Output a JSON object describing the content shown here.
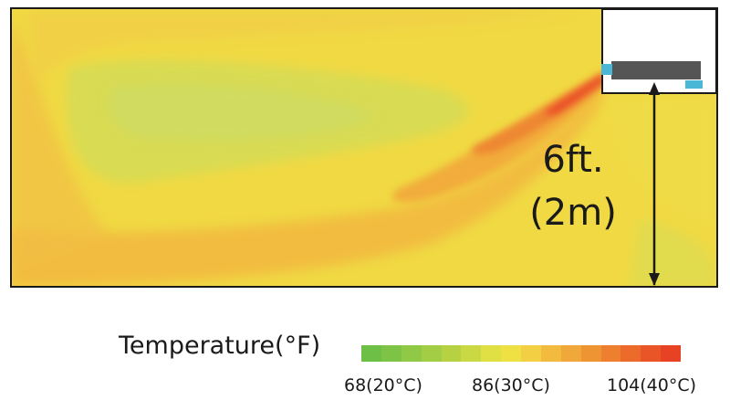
{
  "figure": {
    "height_label_line1": "6ft.",
    "height_label_line2": "(2m)"
  },
  "legend": {
    "title": "Temperature(°F)",
    "ticks": [
      "68(20°C)",
      "86(30°C)",
      "104(40°C)"
    ],
    "colors": [
      "#6dbf45",
      "#7dc446",
      "#8fc946",
      "#a2cd45",
      "#b6d243",
      "#cad843",
      "#e0e044",
      "#efe144",
      "#f2cf43",
      "#f2bb3f",
      "#f1a83a",
      "#ef9433",
      "#ee7f2e",
      "#ec6a2a",
      "#ea5527",
      "#e84225"
    ]
  },
  "palette": {
    "background": "#f0d943",
    "warm": "#f2b63e",
    "cool": "#d8dc4f",
    "jet_core": "#ea4a25",
    "unit_body": "#555555",
    "unit_vent": "#4bb7d6"
  }
}
